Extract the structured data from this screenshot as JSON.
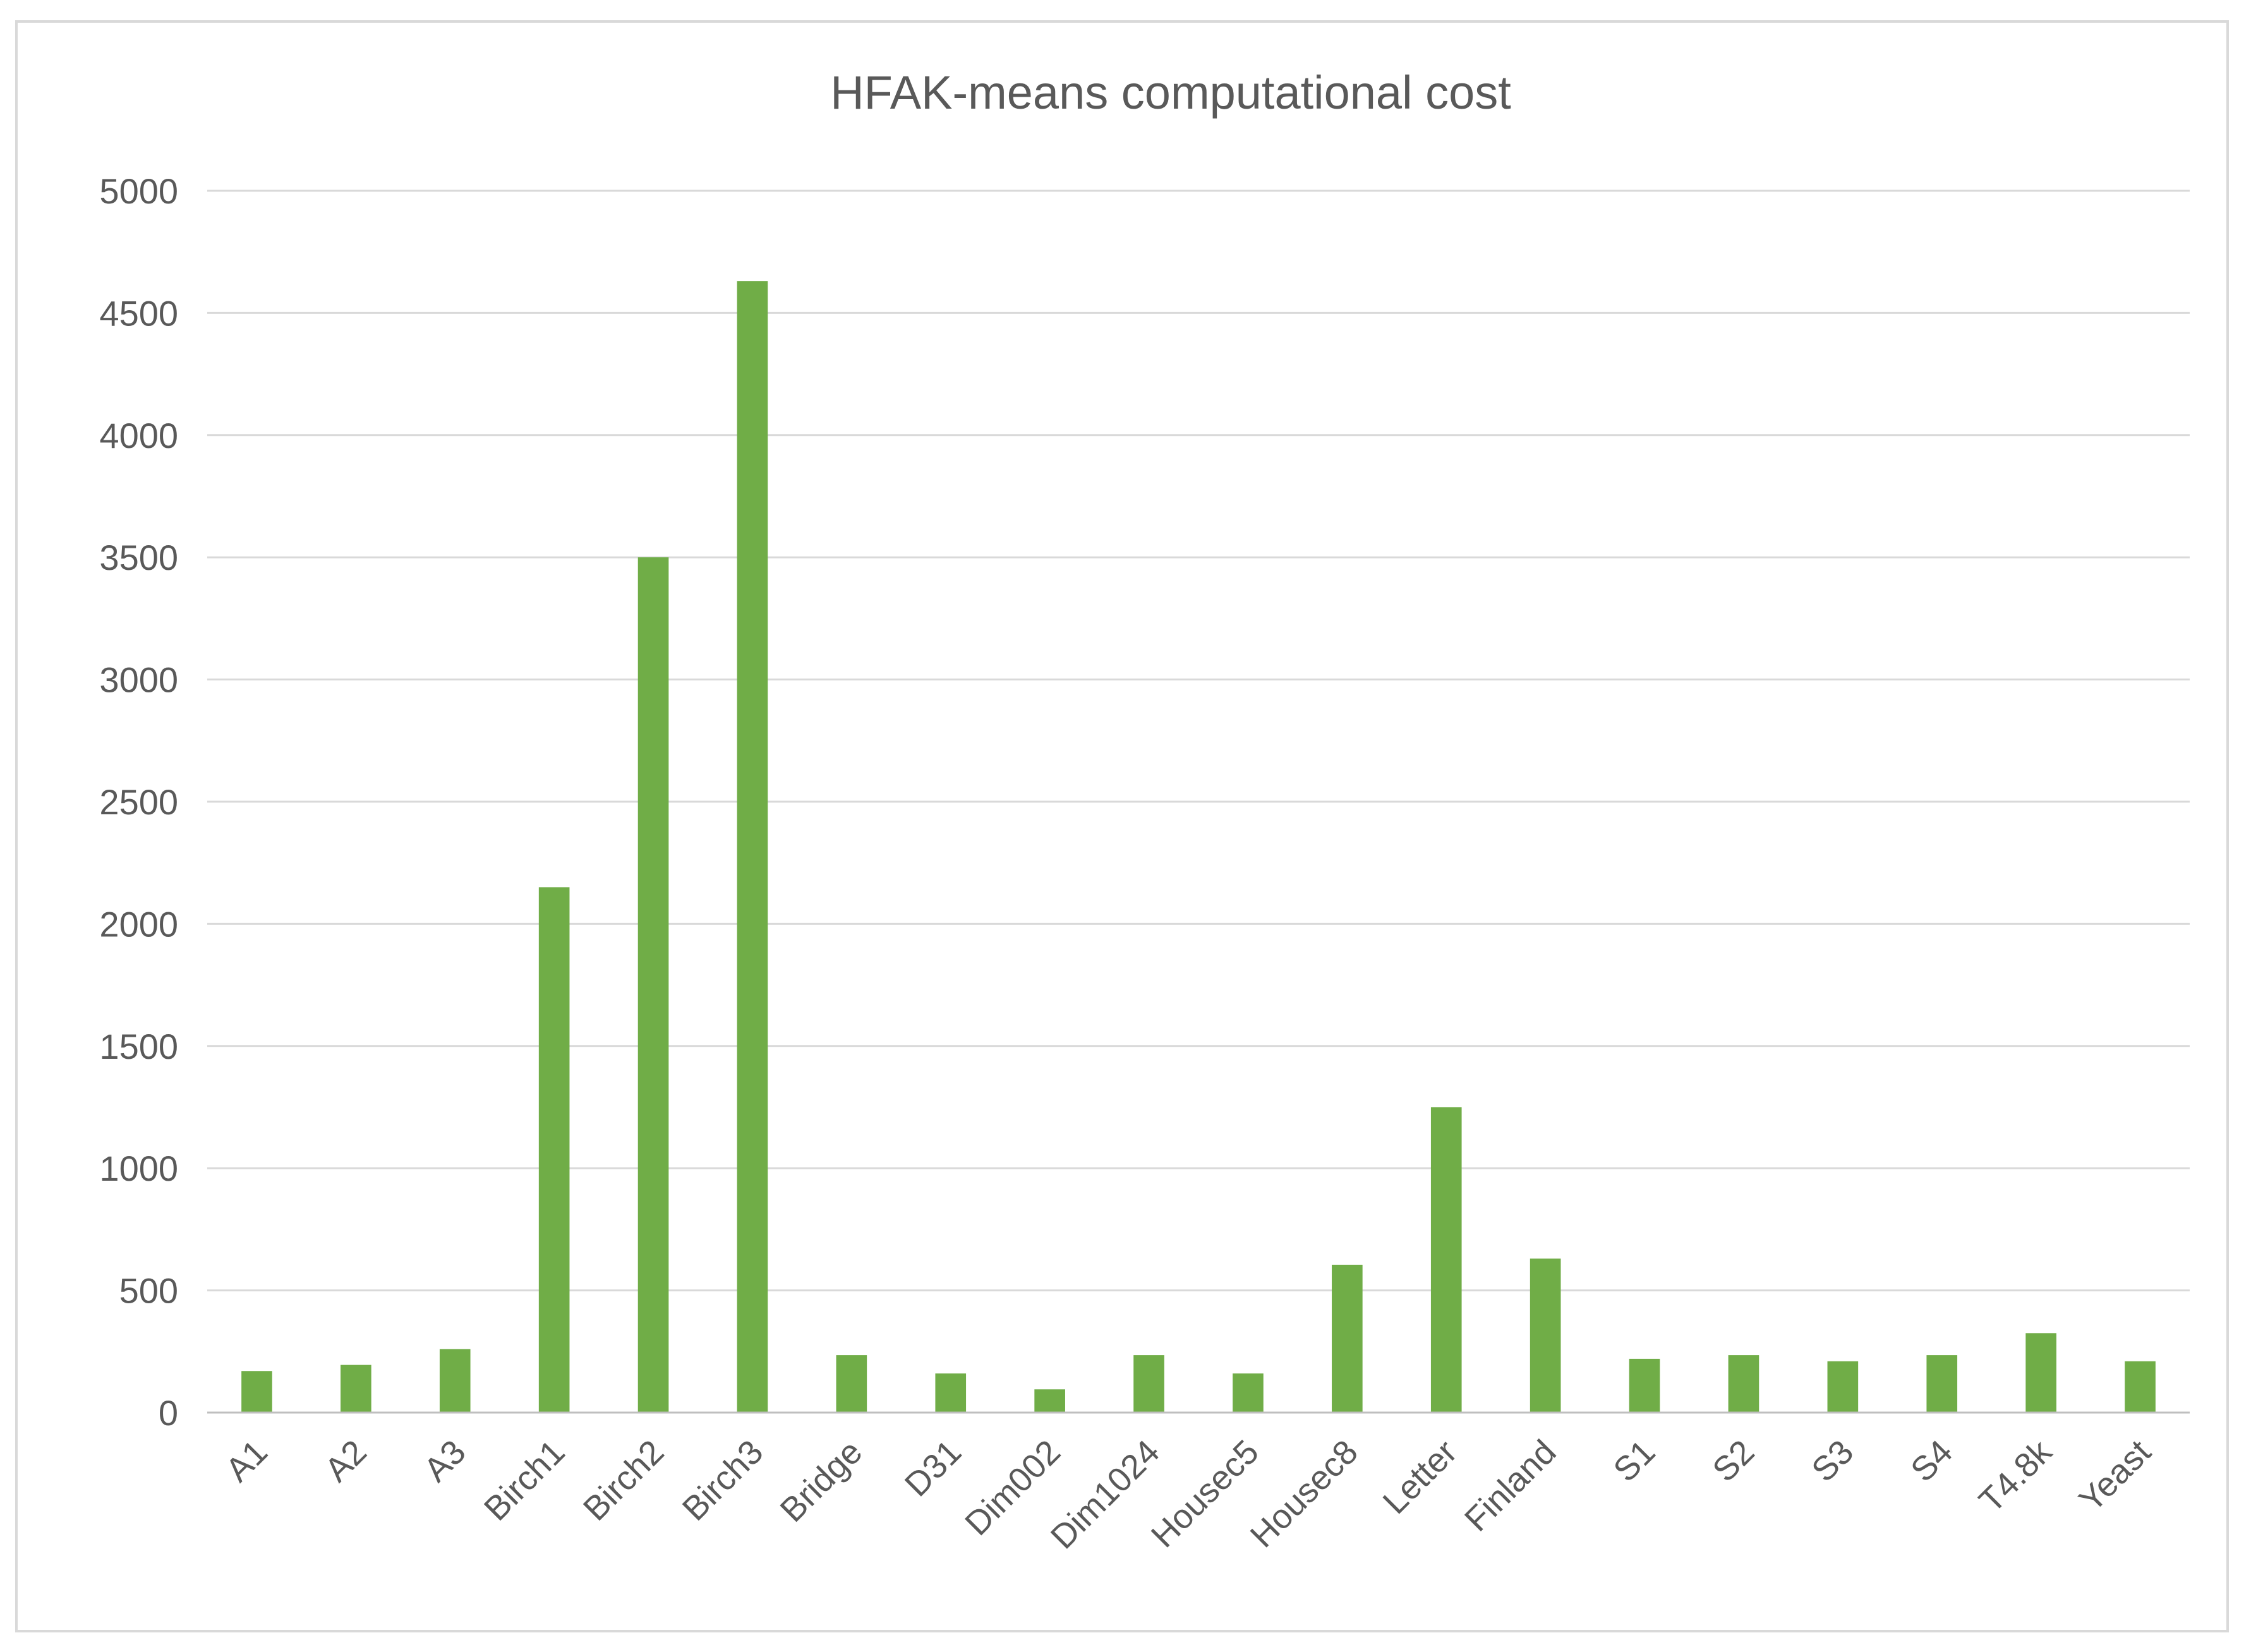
{
  "chart_data": {
    "type": "bar",
    "title": "HFAK-means computational cost",
    "xlabel": "",
    "ylabel": "",
    "ylim": [
      0,
      5000
    ],
    "yticks": [
      0,
      500,
      1000,
      1500,
      2000,
      2500,
      3000,
      3500,
      4000,
      4500,
      5000
    ],
    "grid": true,
    "legend": "none",
    "bar_color": "#70ad47",
    "categories": [
      "A1",
      "A2",
      "A3",
      "Birch1",
      "Birch2",
      "Birch3",
      "Bridge",
      "D31",
      "Dim002",
      "Dim1024",
      "Housec5",
      "Housec8",
      "Letter",
      "Finland",
      "S1",
      "S2",
      "S3",
      "S4",
      "T4.8k",
      "Yeast"
    ],
    "values": [
      170,
      195,
      260,
      2150,
      3500,
      4630,
      235,
      160,
      95,
      235,
      160,
      605,
      1250,
      630,
      220,
      235,
      210,
      235,
      325,
      210
    ]
  }
}
